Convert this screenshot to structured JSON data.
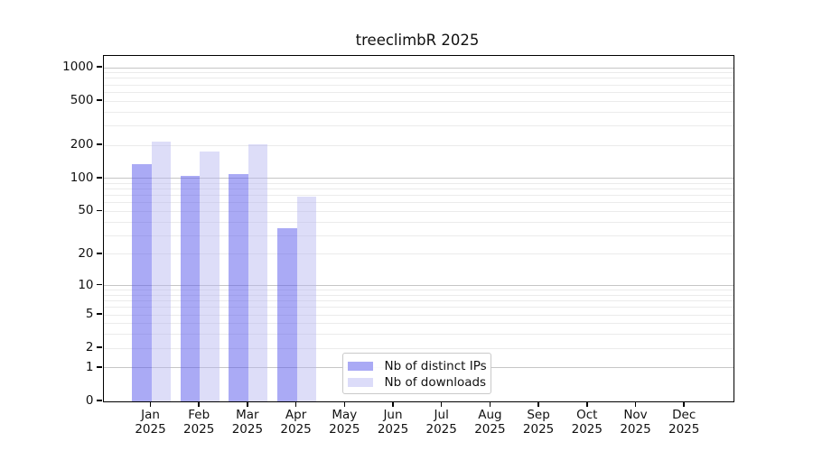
{
  "title": "treeclimbR 2025",
  "chart_data": {
    "type": "bar",
    "title": "treeclimbR 2025",
    "x_year_label": "2025",
    "categories": [
      "Jan",
      "Feb",
      "Mar",
      "Apr",
      "May",
      "Jun",
      "Jul",
      "Aug",
      "Sep",
      "Oct",
      "Nov",
      "Dec"
    ],
    "series": [
      {
        "name": "Nb of distinct IPs",
        "color": "rgba(85,85,235,0.5)",
        "legend_color": "#aaaaf5",
        "values": [
          134,
          105,
          109,
          35,
          null,
          null,
          null,
          null,
          null,
          null,
          null,
          null
        ]
      },
      {
        "name": "Nb of downloads",
        "color": "rgba(180,180,240,0.45)",
        "legend_color": "#dcdcf9",
        "values": [
          216,
          176,
          205,
          68,
          null,
          null,
          null,
          null,
          null,
          null,
          null,
          null
        ]
      }
    ],
    "yscale": "log1p",
    "ylim": [
      0,
      1340
    ],
    "yticks": [
      0,
      1,
      2,
      5,
      10,
      20,
      50,
      100,
      200,
      500,
      1000
    ],
    "grid": true,
    "grid_major": [
      1,
      10,
      100,
      1000
    ],
    "grid_minor": [
      2,
      3,
      4,
      5,
      6,
      7,
      8,
      9,
      20,
      30,
      40,
      50,
      60,
      70,
      80,
      90,
      200,
      300,
      400,
      500,
      600,
      700,
      800,
      900
    ],
    "legend_position": "lower-center-inside"
  },
  "legend": {
    "items": [
      {
        "label": "Nb of distinct IPs"
      },
      {
        "label": "Nb of downloads"
      }
    ]
  },
  "colors": {
    "background": "#ffffff",
    "axis": "#000000",
    "text": "#111111",
    "grid_major": "#c6c6c6",
    "grid_minor": "#ebebeb",
    "bar_distinct_ips": "#aaaaf5",
    "bar_downloads": "#dcdcf9"
  }
}
